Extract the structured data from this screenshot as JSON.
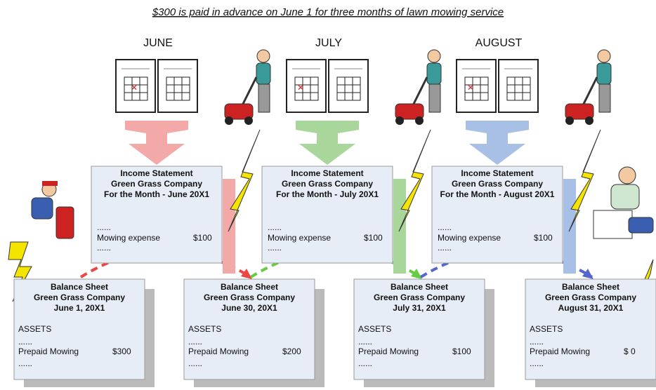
{
  "title": "$300 is paid in advance on June 1 for three months of lawn mowing service",
  "months": [
    {
      "label": "JUNE"
    },
    {
      "label": "JULY"
    },
    {
      "label": "AUGUST"
    }
  ],
  "income_statements": [
    {
      "title": "Income Statement",
      "company": "Green Grass Company",
      "period": "For the Month - June 20X1",
      "dots_top": "......",
      "line_label": "Mowing expense",
      "line_value": "$100",
      "dots_bottom": "......"
    },
    {
      "title": "Income Statement",
      "company": "Green Grass Company",
      "period": "For the Month - July 20X1",
      "dots_top": "......",
      "line_label": "Mowing expense",
      "line_value": "$100",
      "dots_bottom": "......"
    },
    {
      "title": "Income Statement",
      "company": "Green Grass Company",
      "period": "For the Month - August 20X1",
      "dots_top": "......",
      "line_label": "Mowing expense",
      "line_value": "$100",
      "dots_bottom": "......"
    }
  ],
  "balance_sheets": [
    {
      "title": "Balance Sheet",
      "company": "Green Grass Company",
      "date": "June 1, 20X1",
      "section": "ASSETS",
      "dots_top": "......",
      "line_label": "Prepaid Mowing",
      "line_value": "$300",
      "dots_bottom": "......"
    },
    {
      "title": "Balance Sheet",
      "company": "Green Grass Company",
      "date": "June 30, 20X1",
      "section": "ASSETS",
      "dots_top": "......",
      "line_label": "Prepaid Mowing",
      "line_value": "$200",
      "dots_bottom": "......"
    },
    {
      "title": "Balance Sheet",
      "company": "Green Grass Company",
      "date": "July 31, 20X1",
      "section": "ASSETS",
      "dots_top": "......",
      "line_label": "Prepaid Mowing",
      "line_value": "$100",
      "dots_bottom": "......"
    },
    {
      "title": "Balance Sheet",
      "company": "Green Grass Company",
      "date": "August 31, 20X1",
      "section": "ASSETS",
      "dots_top": "......",
      "line_label": "Prepaid Mowing",
      "line_value": "$ 0",
      "dots_bottom": "......"
    }
  ]
}
